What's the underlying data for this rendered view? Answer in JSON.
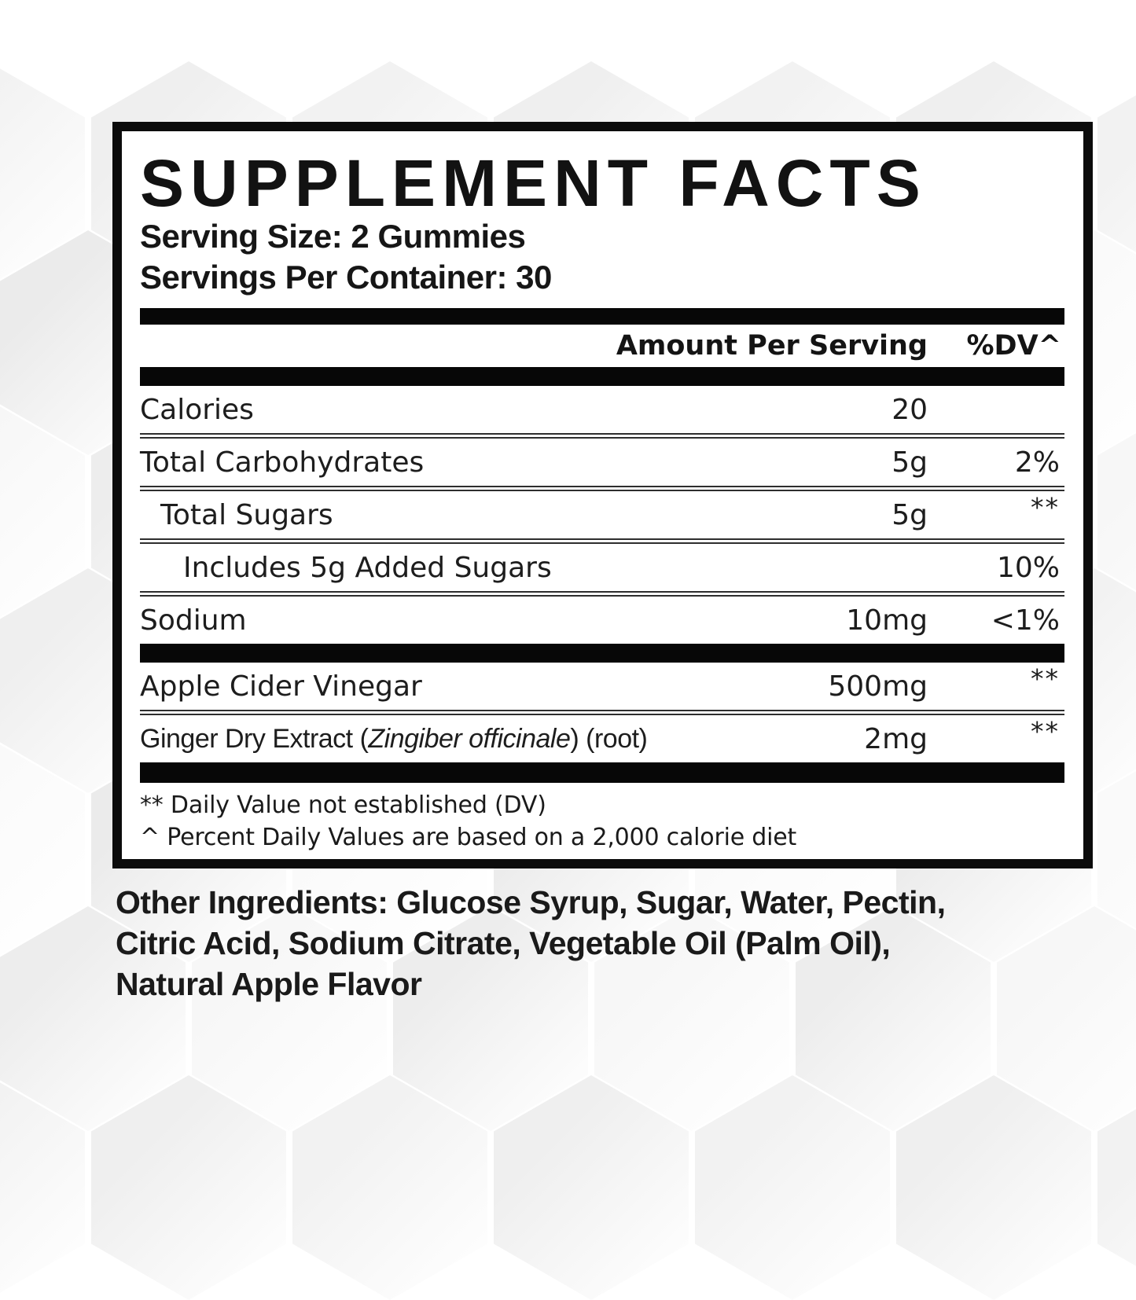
{
  "colors": {
    "ink": "#1b1b1b",
    "bar": "#070707",
    "panel_border": "#0c0c0c",
    "separator": "#2e2e2e",
    "hex_tint": "#eeeeee"
  },
  "panel": {
    "title": "SUPPLEMENT FACTS",
    "serving_size": "Serving Size: 2 Gummies",
    "servings_per_container": "Servings Per Container: 30",
    "columns": {
      "amount": "Amount Per Serving",
      "dv": "%DV^"
    },
    "rows": [
      {
        "name": "Calories",
        "amount": "20",
        "dv": ""
      },
      {
        "name": "Total Carbohydrates",
        "amount": "5g",
        "dv": "2%"
      },
      {
        "name": "Total Sugars",
        "amount": "5g",
        "dv": "**"
      },
      {
        "name": "Includes 5g Added Sugars",
        "amount": "",
        "dv": "10%"
      },
      {
        "name": "Sodium",
        "amount": "10mg",
        "dv": "<1%"
      },
      {
        "name": "Apple Cider Vinegar",
        "amount": "500mg",
        "dv": "**"
      },
      {
        "name_pre": "Ginger Dry Extract (",
        "name_italic": "Zingiber officinale",
        "name_post": ") (root)",
        "amount": "2mg",
        "dv": "**"
      }
    ],
    "footnotes": [
      "** Daily Value not established (DV)",
      "^ Percent Daily Values are based on a 2,000 calorie diet"
    ]
  },
  "other_ingredients": {
    "lines": [
      "Other Ingredients: Glucose Syrup, Sugar, Water, Pectin,",
      "Citric Acid, Sodium Citrate, Vegetable Oil (Palm Oil),",
      "Natural Apple Flavor"
    ]
  }
}
